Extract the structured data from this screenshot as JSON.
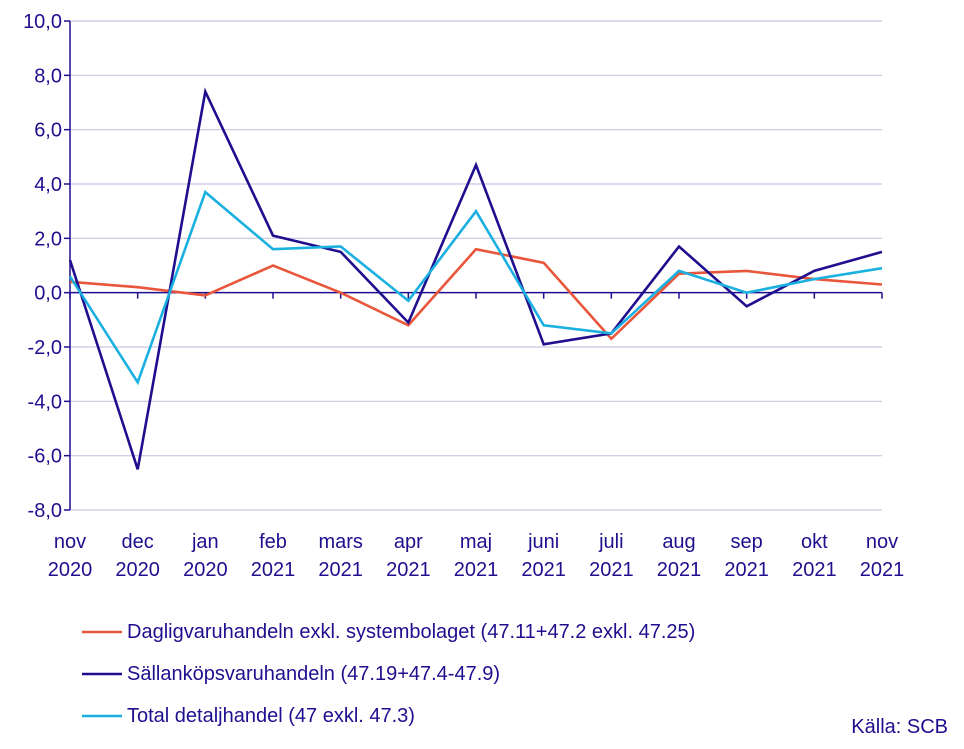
{
  "chart_data": {
    "type": "line",
    "title": "",
    "xlabel": "",
    "ylabel": "",
    "ylim": [
      -8,
      10
    ],
    "yticks": [
      10,
      8,
      6,
      4,
      2,
      0,
      -2,
      -4,
      -6,
      -8
    ],
    "ytick_labels": [
      "10,0",
      "8,0",
      "6,0",
      "4,0",
      "2,0",
      "0,0",
      "-2,0",
      "-4,0",
      "-6,0",
      "-8,0"
    ],
    "grid": true,
    "legend_position": "bottom-left",
    "categories": [
      [
        "nov",
        "2020"
      ],
      [
        "dec",
        "2020"
      ],
      [
        "jan",
        "2020"
      ],
      [
        "feb",
        "2021"
      ],
      [
        "mars",
        "2021"
      ],
      [
        "apr",
        "2021"
      ],
      [
        "maj",
        "2021"
      ],
      [
        "juni",
        "2021"
      ],
      [
        "juli",
        "2021"
      ],
      [
        "aug",
        "2021"
      ],
      [
        "sep",
        "2021"
      ],
      [
        "okt",
        "2021"
      ],
      [
        "nov",
        "2021"
      ]
    ],
    "series": [
      {
        "name": "Dagligvaruhandeln exkl. systembolaget (47.11+47.2 exkl. 47.25)",
        "color": "#e8563b",
        "values": [
          0.4,
          0.2,
          -0.1,
          1.0,
          0.0,
          -1.2,
          1.6,
          1.1,
          -1.7,
          0.7,
          0.8,
          0.5,
          0.3
        ]
      },
      {
        "name": "Sällanköpsvaruhandeln (47.19+47.4-47.9)",
        "color": "#1f0f8f",
        "values": [
          1.2,
          -6.5,
          7.4,
          2.1,
          1.5,
          -1.1,
          4.7,
          -1.9,
          -1.5,
          1.7,
          -0.5,
          0.8,
          1.5
        ]
      },
      {
        "name": "Total detaljhandel (47 exkl. 47.3)",
        "color": "#1ab0e0",
        "values": [
          0.6,
          -3.3,
          3.7,
          1.6,
          1.7,
          -0.3,
          3.0,
          -1.2,
          -1.5,
          0.8,
          0.0,
          0.5,
          0.9
        ]
      }
    ],
    "source_note": "Källa: SCB",
    "colors": {
      "axis": "#1f0f8f",
      "grid": "#c9c6e0",
      "text": "#1f0f8f"
    }
  }
}
